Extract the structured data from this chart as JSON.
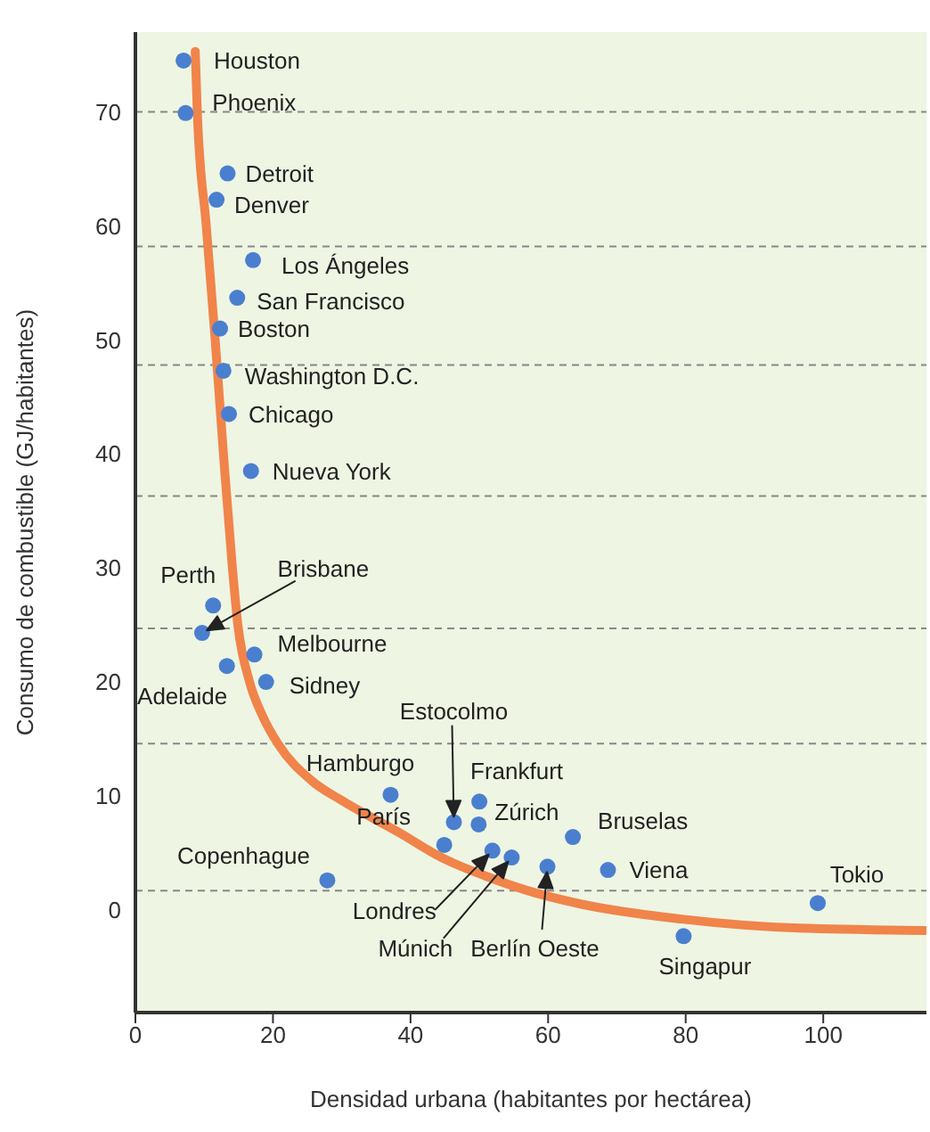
{
  "chart_data": {
    "type": "scatter",
    "xlabel": "Densidad urbana (habitantes por hectárea)",
    "ylabel": "Consumo de combustible (GJ/habitantes)",
    "xlim": [
      0,
      115
    ],
    "xticks": [
      0,
      20,
      40,
      60,
      80,
      100
    ],
    "ylim": [
      -9,
      77
    ],
    "yticks": [
      0,
      10,
      20,
      30,
      40,
      50,
      60,
      70
    ],
    "grid": false,
    "marker": "circle",
    "series": [
      {
        "color": "#4a7fcf",
        "x": [
          7.0,
          7.3,
          13.4,
          11.8,
          17.1,
          14.8,
          12.3,
          12.8,
          13.6,
          16.8,
          11.3,
          9.7,
          17.3,
          13.3,
          19.0,
          37.1,
          46.3,
          50.0,
          49.9,
          44.9,
          51.9,
          54.7,
          59.9,
          63.6,
          68.7,
          27.9,
          79.7,
          99.2
        ],
        "values": [
          74.5,
          69.9,
          64.6,
          62.3,
          57.0,
          53.7,
          51.0,
          47.3,
          43.5,
          38.5,
          26.7,
          24.3,
          22.4,
          21.4,
          20.0,
          10.1,
          7.7,
          9.5,
          7.5,
          5.7,
          5.2,
          4.6,
          3.8,
          6.4,
          3.5,
          2.6,
          -2.3,
          0.6
        ]
      },
      {
        "type": "line",
        "color": "#f0844a",
        "line_style": "solid",
        "marker": "none",
        "x": [
          8.7,
          9,
          10.3,
          11.6,
          12.8,
          14.1,
          14.9,
          16.6,
          18.5,
          20.7,
          25.7,
          30,
          38.3,
          44.5,
          50.8,
          57,
          64.9,
          79.4,
          96.6,
          115
        ],
        "values": [
          75.3,
          70,
          60,
          50,
          40,
          30,
          25,
          20,
          17,
          14.6,
          11.3,
          9.6,
          6.8,
          4.6,
          3.0,
          1.7,
          0.5,
          -0.8,
          -1.6,
          -1.8
        ]
      }
    ],
    "ref_lines": [
      {
        "axis": "y",
        "value": 70,
        "color": "#888888",
        "line_style": "dashed"
      },
      {
        "axis": "y",
        "value": 58.2,
        "color": "#888888",
        "line_style": "dashed"
      },
      {
        "axis": "y",
        "value": 47.8,
        "color": "#888888",
        "line_style": "dashed"
      },
      {
        "axis": "y",
        "value": 36.3,
        "color": "#888888",
        "line_style": "dashed"
      },
      {
        "axis": "y",
        "value": 24.7,
        "color": "#888888",
        "line_style": "dashed"
      },
      {
        "axis": "y",
        "value": 14.6,
        "color": "#888888",
        "line_style": "dashed"
      },
      {
        "axis": "y",
        "value": 1.7,
        "color": "#888888",
        "line_style": "dashed"
      }
    ],
    "annotations": [
      {
        "text": "Houston",
        "x": 7.0,
        "y": 74.5
      },
      {
        "text": "Phoenix",
        "x": 7.3,
        "y": 69.9
      },
      {
        "text": "Detroit",
        "x": 13.4,
        "y": 64.6
      },
      {
        "text": "Denver",
        "x": 11.8,
        "y": 62.3
      },
      {
        "text": "Los Ángeles",
        "x": 17.1,
        "y": 57.0
      },
      {
        "text": "San Francisco",
        "x": 14.8,
        "y": 53.7
      },
      {
        "text": "Boston",
        "x": 12.3,
        "y": 51.0
      },
      {
        "text": "Washington D.C.",
        "x": 12.8,
        "y": 47.3
      },
      {
        "text": "Chicago",
        "x": 13.6,
        "y": 43.5
      },
      {
        "text": "Nueva York",
        "x": 16.8,
        "y": 38.5
      },
      {
        "text": "Perth",
        "x": 11.3,
        "y": 26.7
      },
      "Brisbane",
      {
        "text": "Melbourne",
        "x": 17.3,
        "y": 22.4
      },
      {
        "text": "Adelaide",
        "x": 13.3,
        "y": 21.4
      },
      {
        "text": "Sidney",
        "x": 19.0,
        "y": 20.0
      },
      {
        "text": "Hamburgo",
        "x": 37.1,
        "y": 10.1
      },
      "Estocolmo",
      {
        "text": "Frankfurt",
        "x": 50.0,
        "y": 9.5
      },
      {
        "text": "Zúrich",
        "x": 49.9,
        "y": 7.5
      },
      {
        "text": "París",
        "x": 44.9,
        "y": 5.7
      },
      "Londres",
      "Múnich",
      {
        "text": "Berlín Oeste",
        "x": 59.9,
        "y": 3.8
      },
      {
        "text": "Bruselas",
        "x": 63.6,
        "y": 6.4
      },
      {
        "text": "Viena",
        "x": 68.7,
        "y": 3.5
      },
      {
        "text": "Copenhague",
        "x": 27.9,
        "y": 2.6
      },
      {
        "text": "Singapur",
        "x": 79.7,
        "y": -2.3
      },
      {
        "text": "Tokio",
        "x": 99.2,
        "y": 0.6
      }
    ]
  }
}
